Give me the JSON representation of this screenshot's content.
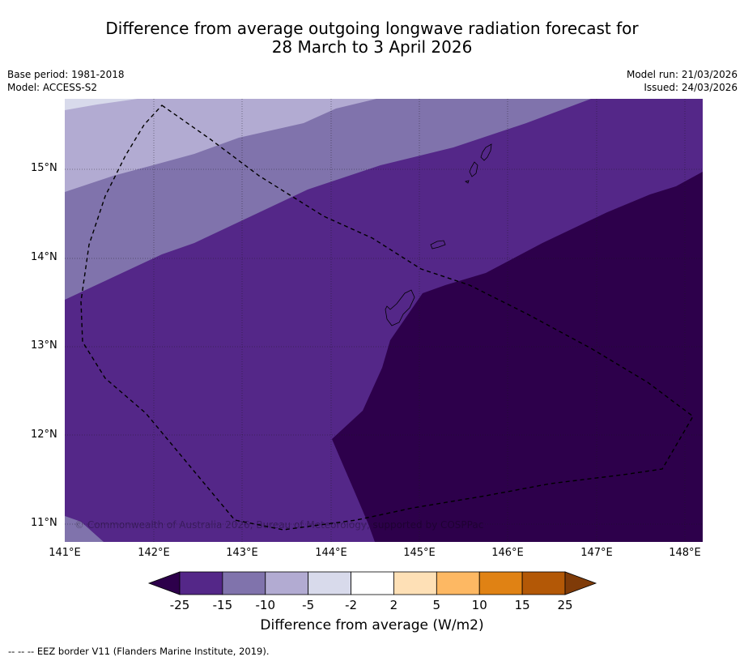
{
  "title": {
    "line1": "Difference from average outgoing longwave radiation forecast for",
    "line2": "28 March to 3 April 2026"
  },
  "meta": {
    "base_period": "Base period: 1981-2018",
    "model": "Model: ACCESS-S2",
    "model_run": "Model run: 21/03/2026",
    "issued": "Issued: 24/03/2026"
  },
  "map": {
    "lat_labels": [
      "15°N",
      "14°N",
      "13°N",
      "12°N",
      "11°N"
    ],
    "lon_labels": [
      "141°E",
      "142°E",
      "143°E",
      "144°E",
      "145°E",
      "146°E",
      "147°E",
      "148°E"
    ],
    "copyright": "© Commonwealth of Australia 2026, Bureau of Meteorology, supported by COSPPac"
  },
  "colorbar": {
    "ticks": [
      "-25",
      "-15",
      "-10",
      "-5",
      "-2",
      "2",
      "5",
      "10",
      "15",
      "25"
    ],
    "colors": [
      "#2d004b",
      "#542788",
      "#8073ac",
      "#b2abd2",
      "#d8daeb",
      "#ffffff",
      "#fee0b6",
      "#fdb863",
      "#e08214",
      "#b35806",
      "#7f3b08"
    ],
    "label": "Difference from average (W/m2)"
  },
  "footer": {
    "legend": "--  --  -- EEZ border V11 (Flanders Marine Institute, 2019)."
  }
}
